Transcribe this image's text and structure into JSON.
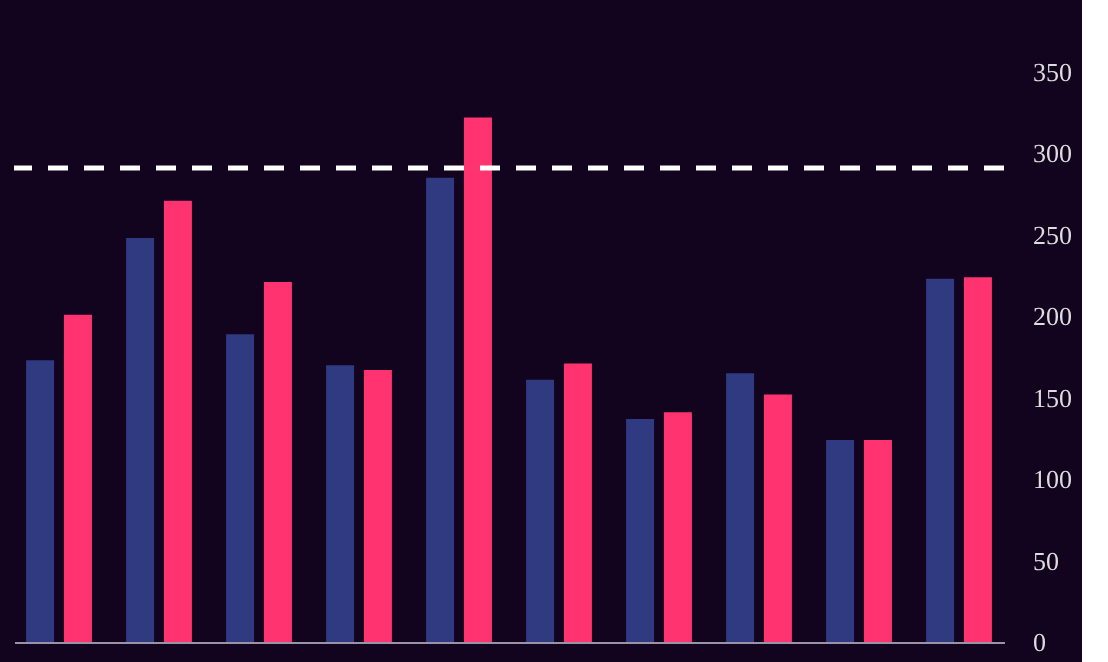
{
  "chart_data": {
    "type": "bar",
    "categories": [
      null,
      null,
      null,
      null,
      null,
      null,
      null,
      null,
      null,
      null
    ],
    "series": [
      {
        "color": "#2f3a80",
        "values": [
          173,
          248,
          189,
          170,
          285,
          161,
          137,
          165,
          124,
          223
        ]
      },
      {
        "color": "#ff3370",
        "values": [
          201,
          271,
          221,
          167,
          322,
          171,
          141,
          152,
          124,
          224
        ]
      }
    ],
    "ylim": [
      0,
      350
    ],
    "yticks": [
      0,
      50,
      100,
      150,
      200,
      250,
      300,
      350
    ],
    "ref_lines": [
      {
        "axis": "y",
        "value": 291,
        "color": "#ffffff",
        "line_style": "dashed"
      }
    ],
    "grid": false,
    "legend": false,
    "tick_labels": "y"
  }
}
